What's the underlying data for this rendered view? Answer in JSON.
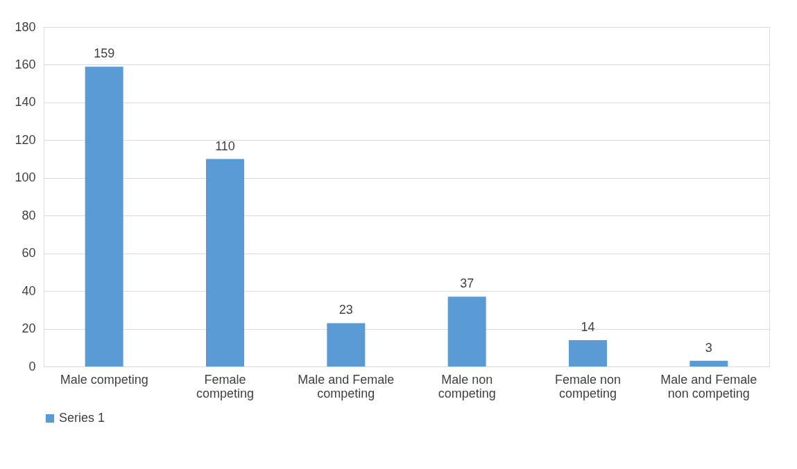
{
  "chart_data": {
    "type": "bar",
    "categories": [
      "Male competing",
      "Female competing",
      "Male and Female competing",
      "Male non competing",
      "Female non competing",
      "Male and Female non competing"
    ],
    "series": [
      {
        "name": "Series 1",
        "color": "#5b9bd5",
        "values": [
          159,
          110,
          23,
          37,
          14,
          3
        ]
      }
    ],
    "ylim": [
      0,
      180
    ],
    "yticks": [
      0,
      20,
      40,
      60,
      80,
      100,
      120,
      140,
      160,
      180
    ],
    "grid": "y",
    "legend": "bottom",
    "data_labels": true
  }
}
